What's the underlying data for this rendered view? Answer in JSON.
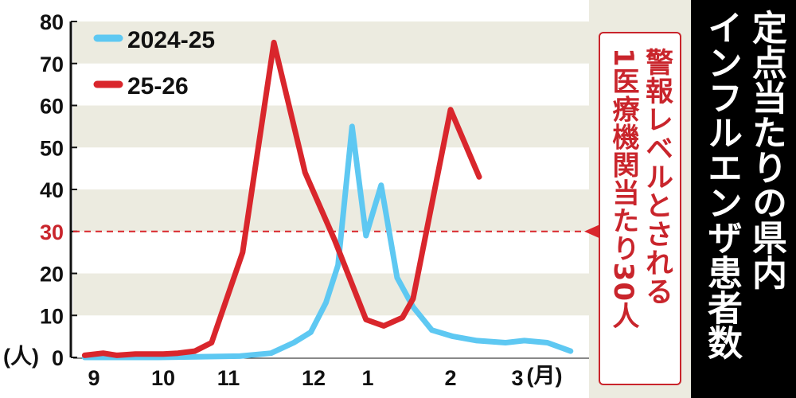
{
  "chart_data": {
    "type": "line",
    "title": "定点当たりの県内インフルエンザ患者数",
    "title_lines": [
      "定点当たりの県内",
      "インフルエンザ患者数"
    ],
    "ylabel": "(人)",
    "xlabel": "(月)",
    "ylim": [
      0,
      80
    ],
    "yticks": [
      "0",
      "10",
      "20",
      "30",
      "40",
      "50",
      "60",
      "70",
      "80"
    ],
    "xticks": [
      "9",
      "10",
      "11",
      "12",
      "1",
      "2",
      "3"
    ],
    "grid": "alternating horizontal bands every 10",
    "legend_position": "top-left",
    "threshold": {
      "value": 30,
      "label_lines": [
        "警報レベルとされる",
        "1医療機関当たり30人"
      ],
      "color": "#d9262c"
    },
    "series": [
      {
        "name": "2024-25",
        "color": "#5ec8f2",
        "points": [
          [
            "08-28",
            0
          ],
          [
            "09-29",
            0
          ],
          [
            "11-05",
            0.3
          ],
          [
            "11-16",
            1
          ],
          [
            "11-24",
            3.5
          ],
          [
            "11-30",
            6
          ],
          [
            "12-08",
            13
          ],
          [
            "12-15",
            22
          ],
          [
            "12-23",
            55
          ],
          [
            "12-31",
            29
          ],
          [
            "01-06",
            41
          ],
          [
            "01-12",
            19
          ],
          [
            "01-18",
            12
          ],
          [
            "01-25",
            6.5
          ],
          [
            "02-02",
            5
          ],
          [
            "02-12",
            4
          ],
          [
            "02-24",
            3.5
          ],
          [
            "03-04",
            4
          ],
          [
            "03-14",
            3.5
          ],
          [
            "03-24",
            1.5
          ]
        ]
      },
      {
        "name": "25-26",
        "color": "#d9262c",
        "points": [
          [
            "08-28",
            0.5
          ],
          [
            "09-05",
            1
          ],
          [
            "09-11",
            0.5
          ],
          [
            "09-19",
            0.8
          ],
          [
            "10-01",
            0.8
          ],
          [
            "10-08",
            1
          ],
          [
            "10-16",
            1.5
          ],
          [
            "10-24",
            3.5
          ],
          [
            "11-06",
            25
          ],
          [
            "11-17",
            75
          ],
          [
            "11-28",
            44
          ],
          [
            "12-13",
            28
          ],
          [
            "12-31",
            9
          ],
          [
            "01-07",
            7.5
          ],
          [
            "01-14",
            9.5
          ],
          [
            "01-18",
            14
          ],
          [
            "02-01",
            59
          ],
          [
            "02-13",
            43
          ]
        ]
      }
    ]
  }
}
